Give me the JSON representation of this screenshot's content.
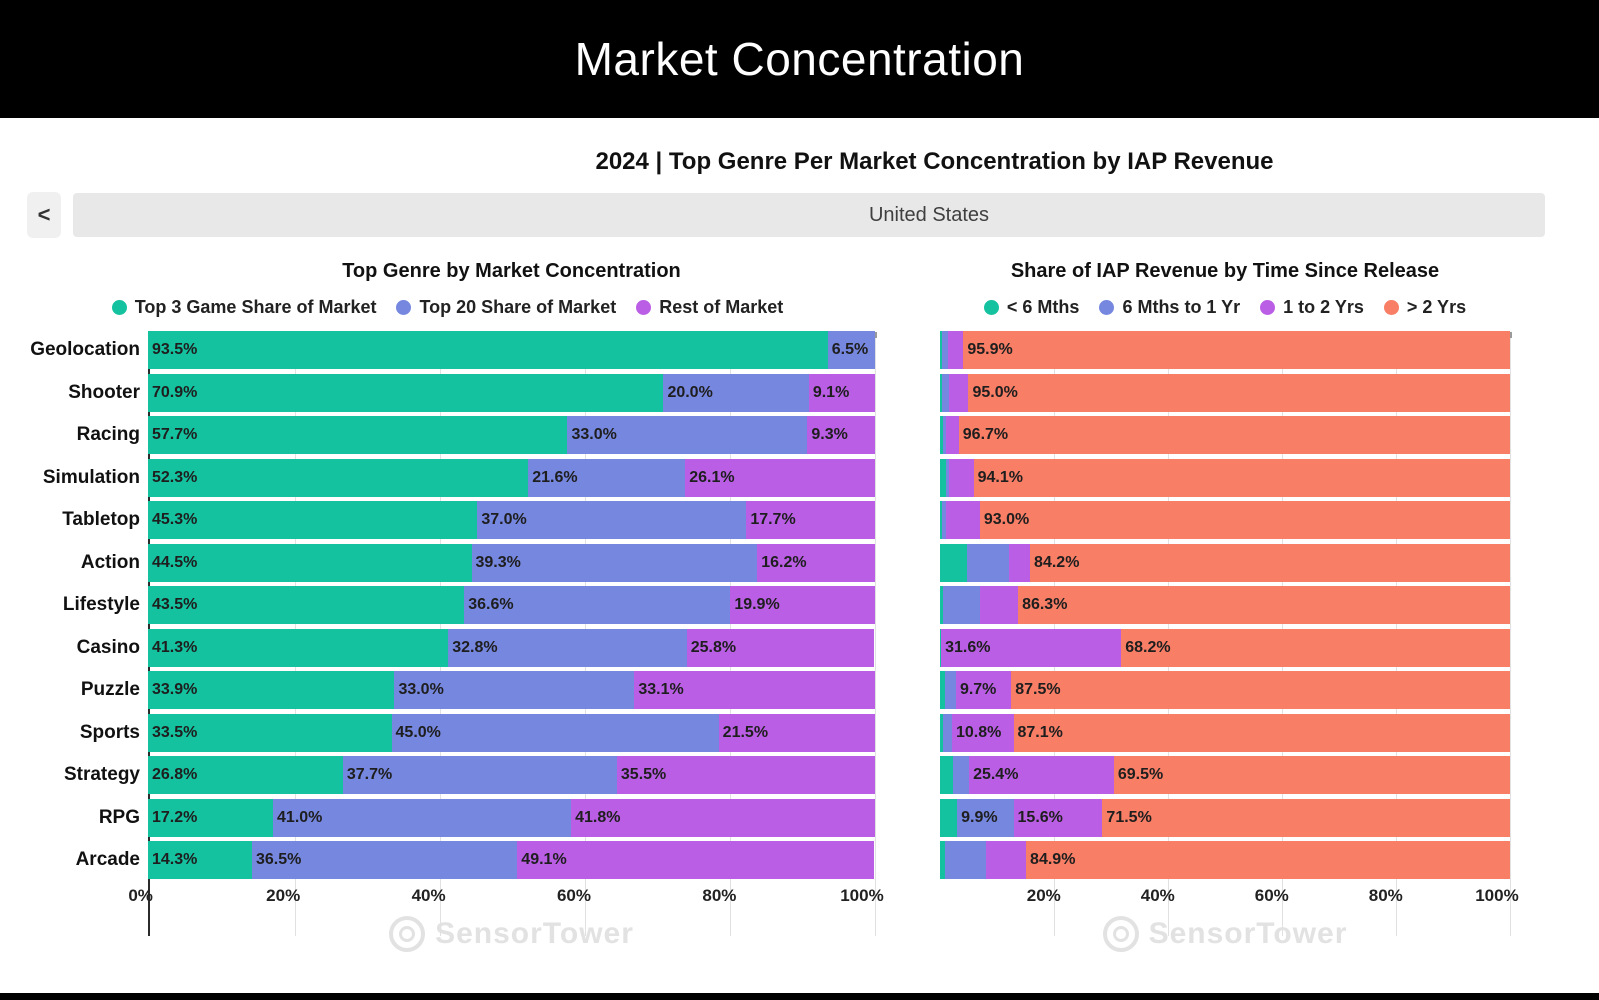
{
  "header": {
    "title": "Market Concentration",
    "subtitle": "2024 | Top Genre Per Market Concentration by IAP Revenue"
  },
  "selector": {
    "prev_icon": "<",
    "country": "United States"
  },
  "watermark": "SensorTower",
  "colors": {
    "teal": "#15C2A0",
    "blue": "#7687E0",
    "purple": "#BB5EE6",
    "salmon": "#F87E66",
    "banner_bg": "#000000",
    "selector_bg": "#E8E8E8",
    "gridline": "#E1E1E1"
  },
  "chart_data": [
    {
      "type": "bar",
      "stacked": true,
      "orientation": "horizontal",
      "title": "Top Genre by Market Concentration",
      "legend_position": "top",
      "grid": true,
      "xlim": [
        0,
        100
      ],
      "x_tick_values": [
        0,
        20,
        40,
        60,
        80,
        100
      ],
      "x_tick_labels": [
        "0%",
        "20%",
        "40%",
        "60%",
        "80%",
        "100%"
      ],
      "show_category_labels": true,
      "categories": [
        "Geolocation",
        "Shooter",
        "Racing",
        "Simulation",
        "Tabletop",
        "Action",
        "Lifestyle",
        "Casino",
        "Puzzle",
        "Sports",
        "Strategy",
        "RPG",
        "Arcade"
      ],
      "series": [
        {
          "name": "Top 3 Game Share of Market",
          "color": "#15C2A0",
          "values": [
            93.5,
            70.9,
            57.7,
            52.3,
            45.3,
            44.5,
            43.5,
            41.3,
            33.9,
            33.5,
            26.8,
            17.2,
            14.3
          ]
        },
        {
          "name": "Top 20 Share of Market",
          "color": "#7687E0",
          "values": [
            6.5,
            20.0,
            33.0,
            21.6,
            37.0,
            39.3,
            36.6,
            32.8,
            33.0,
            45.0,
            37.7,
            41.0,
            36.5
          ]
        },
        {
          "name": "Rest of Market",
          "color": "#BB5EE6",
          "values": [
            0.0,
            9.1,
            9.3,
            26.1,
            17.7,
            16.2,
            19.9,
            25.8,
            33.1,
            21.5,
            35.5,
            41.8,
            49.1
          ]
        }
      ],
      "value_labels": [
        [
          "93.5%",
          "6.5%",
          ""
        ],
        [
          "70.9%",
          "20.0%",
          "9.1%"
        ],
        [
          "57.7%",
          "33.0%",
          "9.3%"
        ],
        [
          "52.3%",
          "21.6%",
          "26.1%"
        ],
        [
          "45.3%",
          "37.0%",
          "17.7%"
        ],
        [
          "44.5%",
          "39.3%",
          "16.2%"
        ],
        [
          "43.5%",
          "36.6%",
          "19.9%"
        ],
        [
          "41.3%",
          "32.8%",
          "25.8%"
        ],
        [
          "33.9%",
          "33.0%",
          "33.1%"
        ],
        [
          "33.5%",
          "45.0%",
          "21.5%"
        ],
        [
          "26.8%",
          "37.7%",
          "35.5%"
        ],
        [
          "17.2%",
          "41.0%",
          "41.8%"
        ],
        [
          "14.3%",
          "36.5%",
          "49.1%"
        ]
      ]
    },
    {
      "type": "bar",
      "stacked": true,
      "orientation": "horizontal",
      "title": "Share of IAP Revenue by Time Since Release",
      "legend_position": "top",
      "grid": true,
      "xlim": [
        0,
        100
      ],
      "x_tick_values": [
        20,
        40,
        60,
        80,
        100
      ],
      "x_tick_labels": [
        "20%",
        "40%",
        "60%",
        "80%",
        "100%"
      ],
      "show_category_labels": false,
      "categories": [
        "Geolocation",
        "Shooter",
        "Racing",
        "Simulation",
        "Tabletop",
        "Action",
        "Lifestyle",
        "Casino",
        "Puzzle",
        "Sports",
        "Strategy",
        "RPG",
        "Arcade"
      ],
      "series": [
        {
          "name": "< 6 Mths",
          "color": "#15C2A0",
          "values": [
            0.3,
            0.4,
            0.6,
            1.0,
            0.4,
            4.8,
            0.6,
            0.1,
            0.8,
            0.6,
            2.3,
            3.0,
            0.9
          ]
        },
        {
          "name": "6 Mths to 1 Yr",
          "color": "#7687E0",
          "values": [
            1.1,
            1.2,
            0.4,
            0.6,
            0.6,
            7.3,
            6.4,
            0.1,
            2.0,
            1.5,
            2.8,
            9.9,
            7.2
          ]
        },
        {
          "name": "1 to 2 Yrs",
          "color": "#BB5EE6",
          "values": [
            2.7,
            3.4,
            2.3,
            4.3,
            6.0,
            3.7,
            6.7,
            31.6,
            9.7,
            10.8,
            25.4,
            15.6,
            7.0
          ]
        },
        {
          "name": "> 2 Yrs",
          "color": "#F87E66",
          "values": [
            95.9,
            95.0,
            96.7,
            94.1,
            93.0,
            84.2,
            86.3,
            68.2,
            87.5,
            87.1,
            69.5,
            71.5,
            84.9
          ]
        }
      ],
      "value_labels": [
        [
          "",
          "",
          "",
          "95.9%"
        ],
        [
          "",
          "",
          "",
          "95.0%"
        ],
        [
          "",
          "",
          "",
          "96.7%"
        ],
        [
          "",
          "",
          "",
          "94.1%"
        ],
        [
          "",
          "",
          "",
          "93.0%"
        ],
        [
          "",
          "",
          "",
          "84.2%"
        ],
        [
          "",
          "",
          "",
          "86.3%"
        ],
        [
          "",
          "",
          "31.6%",
          "68.2%"
        ],
        [
          "",
          "",
          "9.7%",
          "87.5%"
        ],
        [
          "",
          "",
          "10.8%",
          "87.1%"
        ],
        [
          "",
          "",
          "25.4%",
          "69.5%"
        ],
        [
          "",
          "9.9%",
          "15.6%",
          "71.5%"
        ],
        [
          "",
          "",
          "",
          "84.9%"
        ]
      ]
    }
  ]
}
